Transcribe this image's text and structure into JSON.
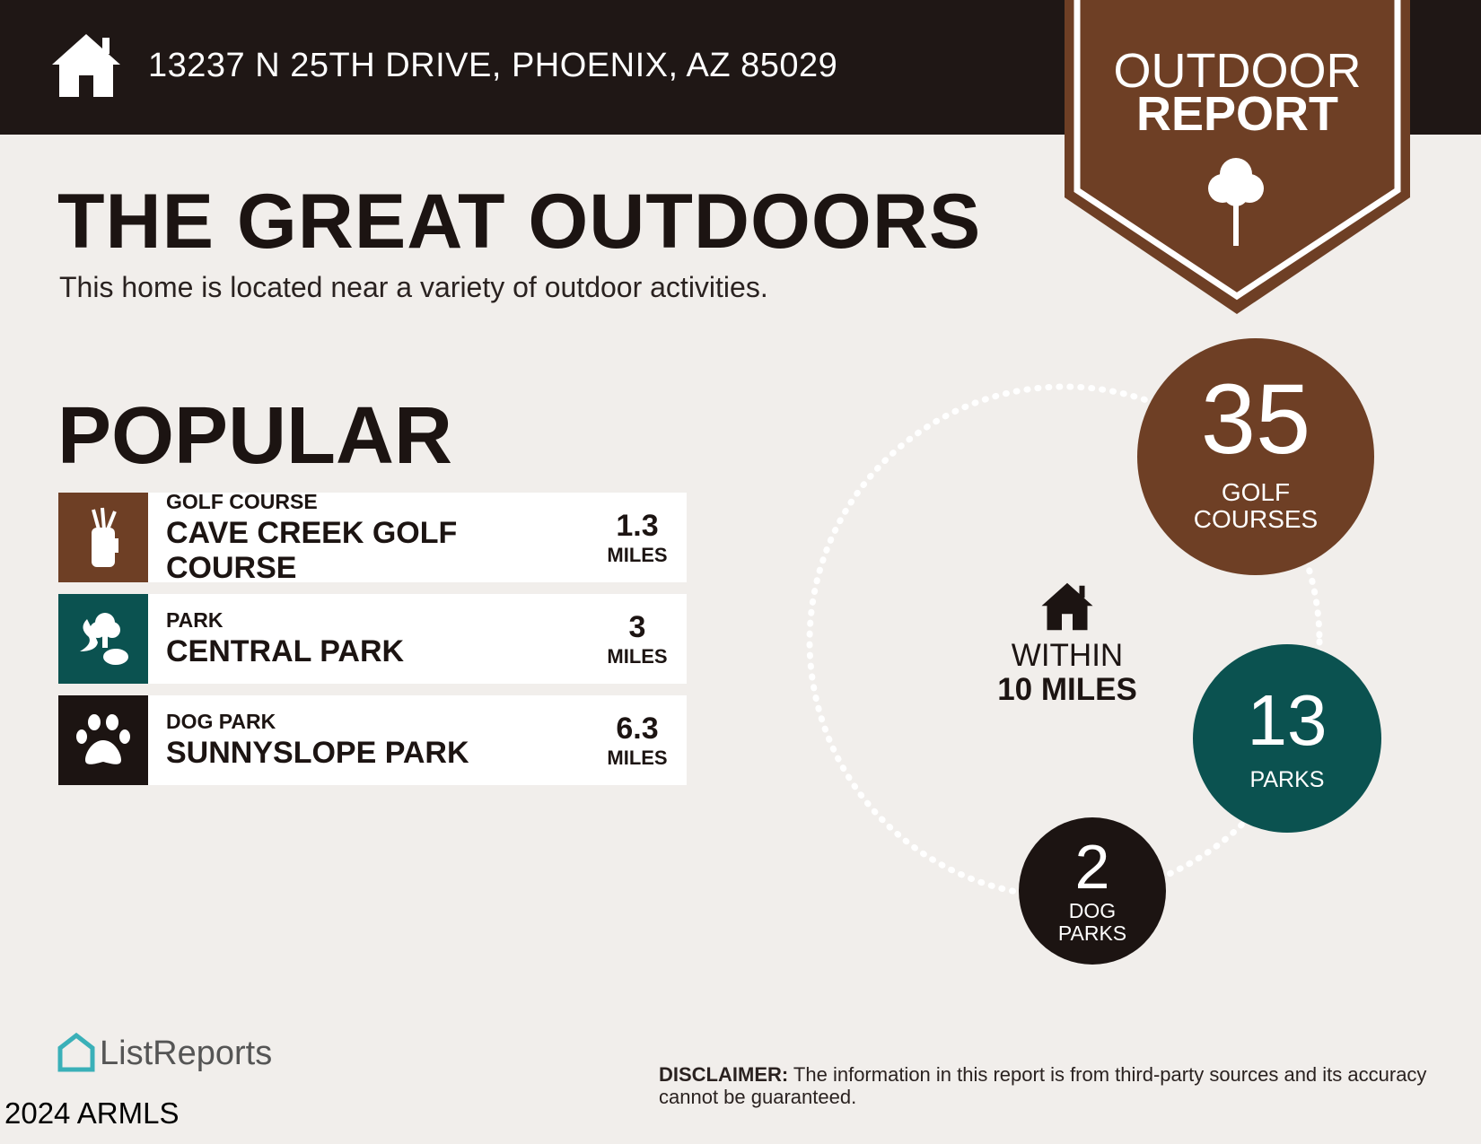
{
  "header": {
    "address": "13237 N 25TH DRIVE, PHOENIX, AZ 85029",
    "icon": "house-icon"
  },
  "badge": {
    "line1": "OUTDOOR",
    "line2": "REPORT",
    "icon": "tree-icon"
  },
  "title": "THE GREAT OUTDOORS",
  "subtitle": "This home is located near a variety of outdoor activities.",
  "section": "POPULAR",
  "items": [
    {
      "category": "GOLF COURSE",
      "name": "CAVE CREEK GOLF COURSE",
      "distance": "1.3",
      "unit": "MILES",
      "icon": "golf-bag-icon",
      "color": "#6e3f25"
    },
    {
      "category": "PARK",
      "name": "CENTRAL PARK",
      "distance": "3",
      "unit": "MILES",
      "icon": "park-tree-icon",
      "color": "#0b5250"
    },
    {
      "category": "DOG PARK",
      "name": "SUNNYSLOPE PARK",
      "distance": "6.3",
      "unit": "MILES",
      "icon": "paw-icon",
      "color": "#1c1412"
    }
  ],
  "within": {
    "line1": "WITHIN",
    "line2": "10 MILES"
  },
  "stats": [
    {
      "count": "35",
      "label1": "GOLF",
      "label2": "COURSES",
      "color": "#6e3f25"
    },
    {
      "count": "13",
      "label1": "PARKS",
      "color": "#0b5250"
    },
    {
      "count": "2",
      "label1": "DOG",
      "label2": "PARKS",
      "color": "#1c1412"
    }
  ],
  "disclaimer": {
    "label": "DISCLAIMER:",
    "text": " The information in this report is from third-party sources and its accuracy cannot be guaranteed."
  },
  "footer": {
    "logo": "ListReports",
    "watermark": "2024 ARMLS"
  }
}
